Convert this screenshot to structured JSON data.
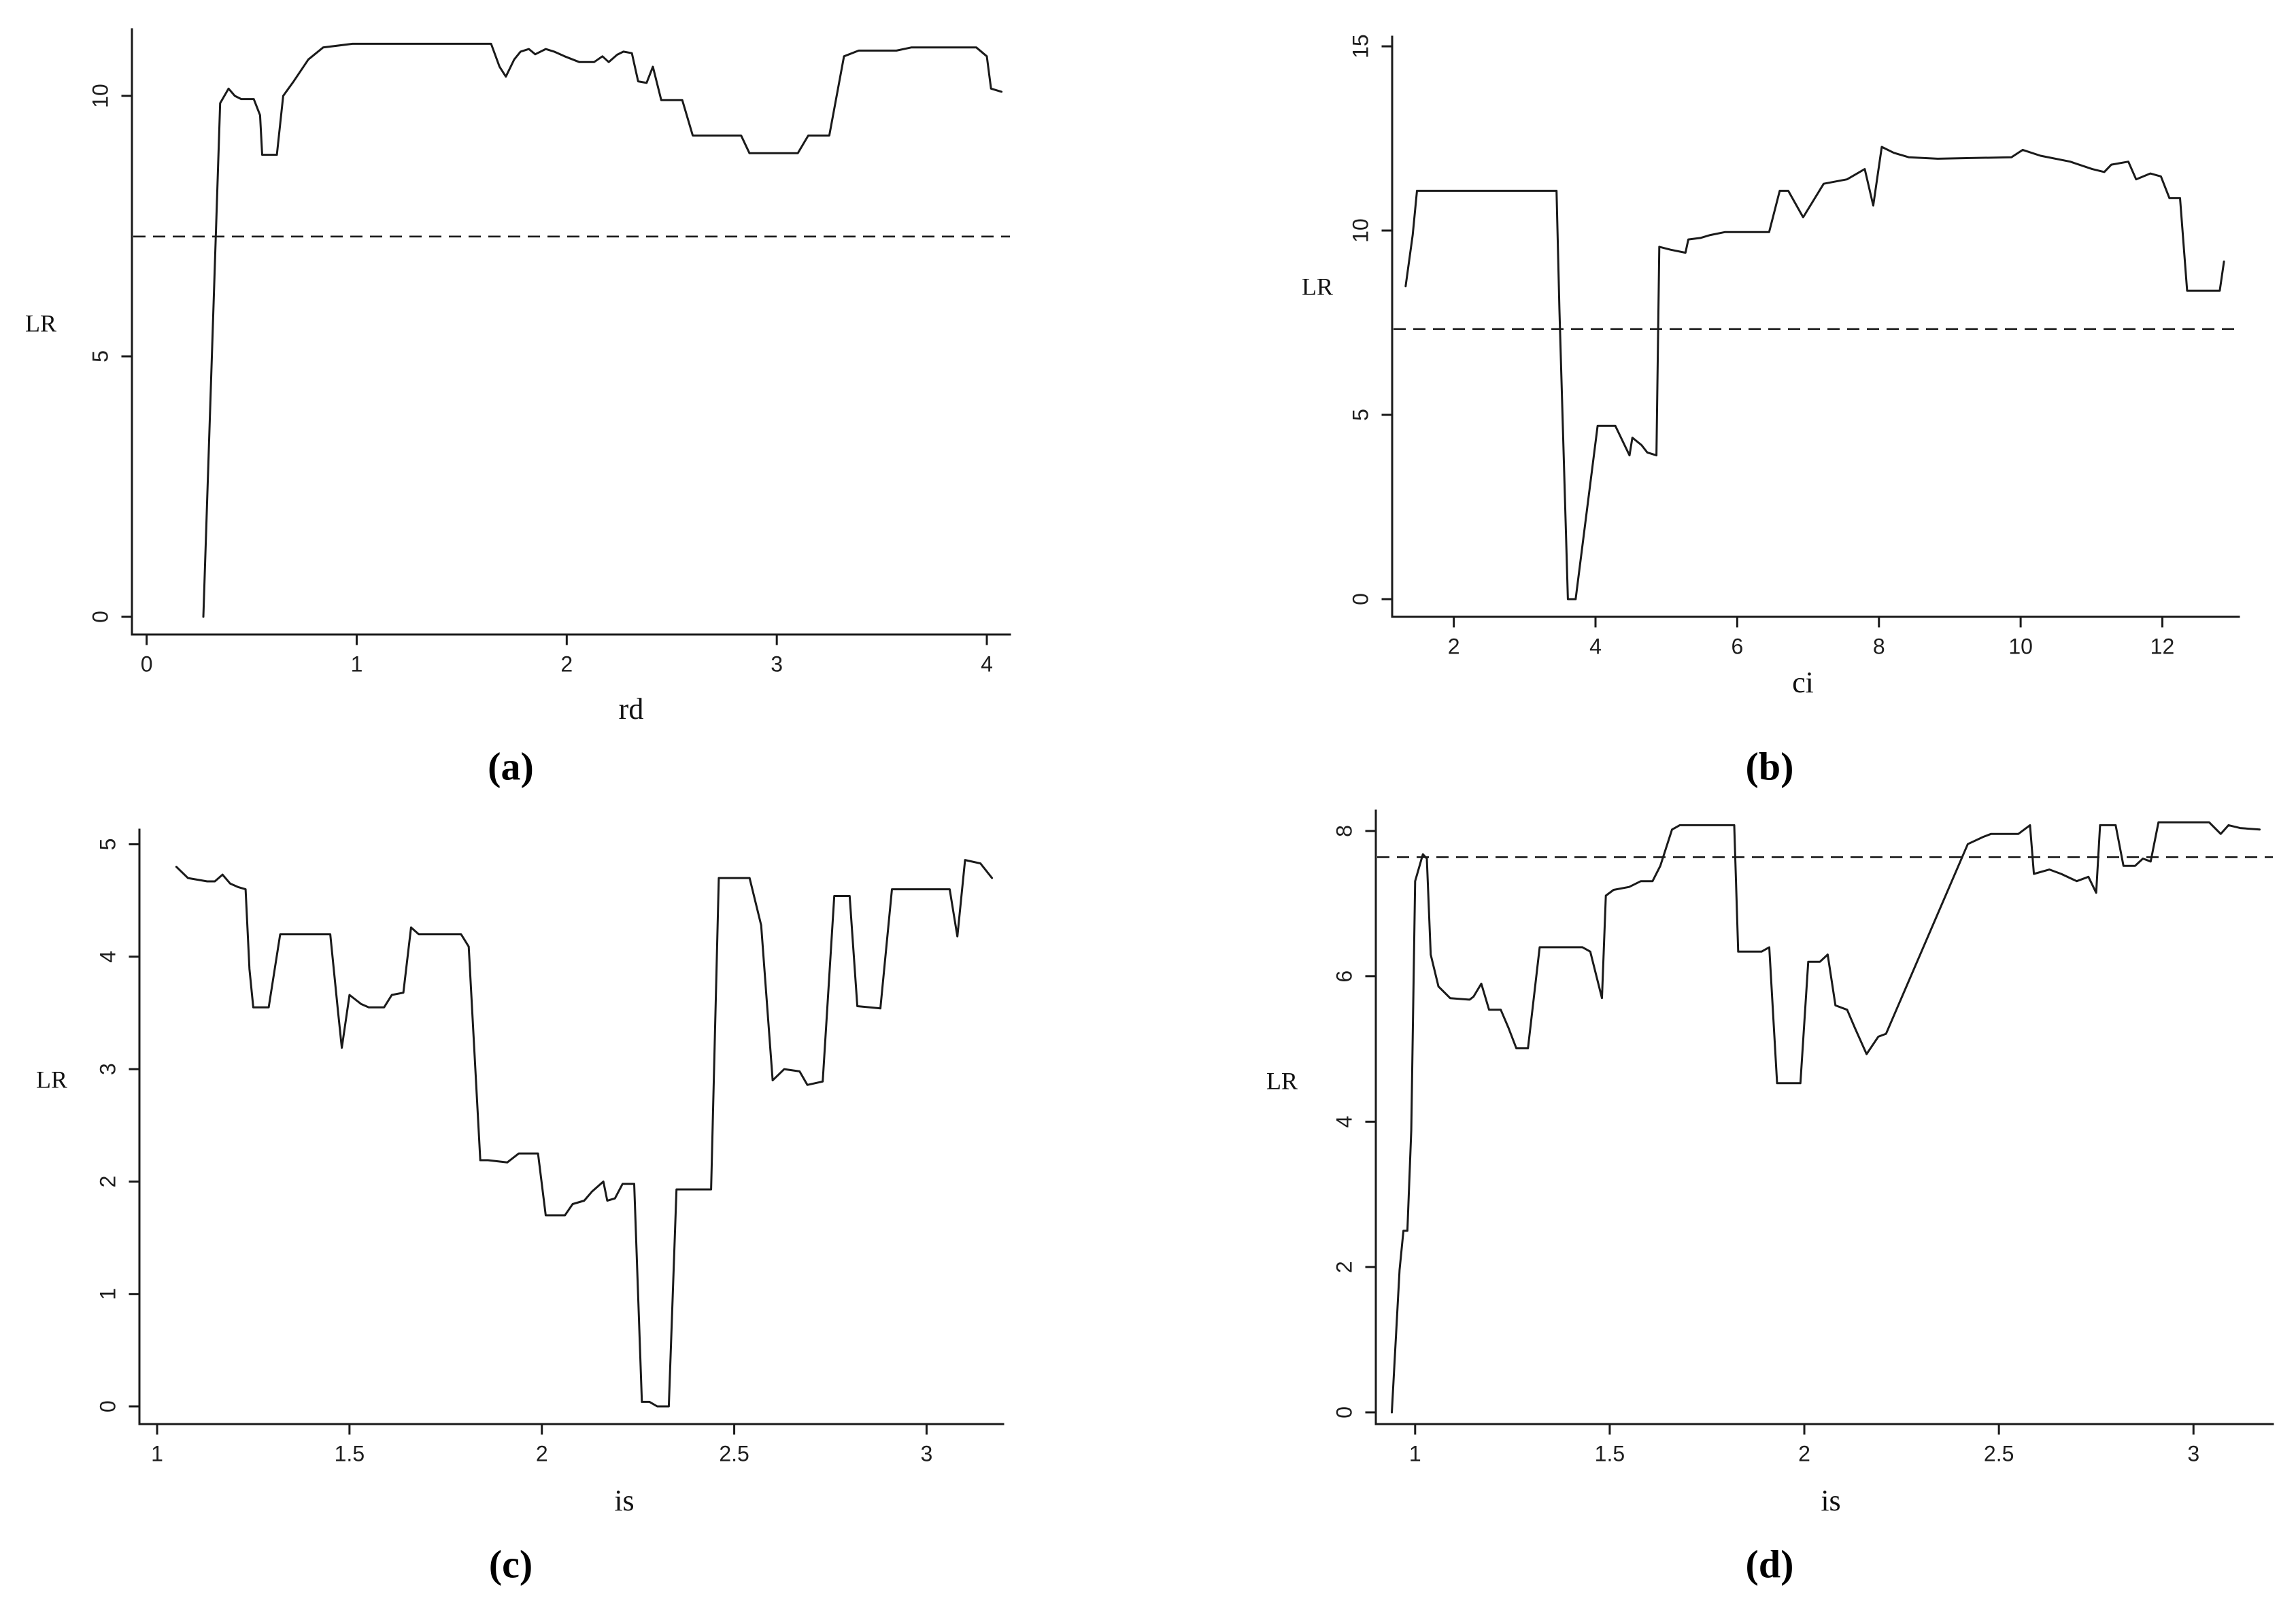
{
  "colors": {
    "line": "#1a1a1a",
    "background": "#ffffff"
  },
  "chart_data": [
    {
      "type": "line",
      "label": "(a)",
      "xlabel": "rd",
      "ylabel": "LR",
      "xlim": [
        -0.07,
        4.11
      ],
      "ylim": [
        -0.34,
        11.28
      ],
      "xticks": [
        0,
        1,
        2,
        3,
        4
      ],
      "yticks": [
        0,
        5,
        10
      ],
      "grid": false,
      "reference_line": {
        "y": 7.3,
        "style": "dashed"
      },
      "series": [
        {
          "x": [
            0.27,
            0.35,
            0.39,
            0.42,
            0.45,
            0.51,
            0.54,
            0.55,
            0.62,
            0.65,
            0.7,
            0.77,
            0.84,
            0.98,
            1.64,
            1.68,
            1.71,
            1.75,
            1.78,
            1.82,
            1.85,
            1.9,
            1.94,
            1.99,
            2.06,
            2.13,
            2.17,
            2.2,
            2.24,
            2.27,
            2.31,
            2.34,
            2.38,
            2.41,
            2.45,
            2.55,
            2.6,
            2.83,
            2.87,
            3.1,
            3.15,
            3.25,
            3.32,
            3.39,
            3.57,
            3.64,
            3.95,
            4.0,
            4.02,
            4.07
          ],
          "y": [
            0,
            9.86,
            10.14,
            10.0,
            9.94,
            9.94,
            9.63,
            8.87,
            8.87,
            10.0,
            10.28,
            10.7,
            10.93,
            11.0,
            11.0,
            10.56,
            10.37,
            10.7,
            10.85,
            10.9,
            10.8,
            10.9,
            10.85,
            10.76,
            10.65,
            10.65,
            10.76,
            10.65,
            10.79,
            10.85,
            10.82,
            10.28,
            10.25,
            10.56,
            9.92,
            9.92,
            9.24,
            9.24,
            8.9,
            8.9,
            9.24,
            9.24,
            10.76,
            10.87,
            10.87,
            10.93,
            10.93,
            10.76,
            10.14,
            10.08
          ]
        }
      ]
    },
    {
      "type": "line",
      "label": "(b)",
      "xlabel": "ci",
      "ylabel": "LR",
      "xlim": [
        1.13,
        13.08
      ],
      "ylim": [
        -0.48,
        15.26
      ],
      "xticks": [
        2,
        4,
        6,
        8,
        10,
        12
      ],
      "yticks": [
        0,
        5,
        10,
        15
      ],
      "grid": false,
      "reference_line": {
        "y": 7.33,
        "style": "dashed"
      },
      "series": [
        {
          "x": [
            1.32,
            1.42,
            1.48,
            3.45,
            3.49,
            3.61,
            3.72,
            4.03,
            4.28,
            4.48,
            4.52,
            4.65,
            4.73,
            4.86,
            4.9,
            5.06,
            5.27,
            5.31,
            5.48,
            5.62,
            5.83,
            6.45,
            6.6,
            6.72,
            6.93,
            7.22,
            7.55,
            7.8,
            7.92,
            8.04,
            8.21,
            8.42,
            8.83,
            9.87,
            10.03,
            10.28,
            10.7,
            11.01,
            11.18,
            11.28,
            11.52,
            11.63,
            11.83,
            11.98,
            12.1,
            12.25,
            12.35,
            12.81,
            12.87
          ],
          "y": [
            8.49,
            9.88,
            11.08,
            11.08,
            7.89,
            0,
            0,
            4.7,
            4.7,
            3.9,
            4.38,
            4.18,
            3.98,
            3.9,
            9.56,
            9.48,
            9.4,
            9.76,
            9.8,
            9.88,
            9.96,
            9.96,
            11.08,
            11.08,
            10.36,
            11.27,
            11.39,
            11.67,
            10.68,
            12.27,
            12.11,
            11.99,
            11.95,
            11.99,
            12.19,
            12.03,
            11.87,
            11.67,
            11.59,
            11.79,
            11.87,
            11.39,
            11.55,
            11.47,
            10.88,
            10.88,
            8.37,
            8.37,
            9.16
          ]
        }
      ]
    },
    {
      "type": "line",
      "label": "(c)",
      "xlabel": "is",
      "ylabel": "LR",
      "xlim": [
        0.954,
        3.199
      ],
      "ylim": [
        -0.157,
        5.13
      ],
      "xticks": [
        1,
        1.5,
        2,
        2.5,
        3
      ],
      "yticks": [
        0,
        1,
        2,
        3,
        4,
        5
      ],
      "grid": false,
      "series": [
        {
          "x": [
            1.05,
            1.08,
            1.13,
            1.15,
            1.17,
            1.19,
            1.21,
            1.23,
            1.24,
            1.25,
            1.29,
            1.32,
            1.45,
            1.47,
            1.48,
            1.5,
            1.53,
            1.55,
            1.59,
            1.61,
            1.64,
            1.66,
            1.68,
            1.79,
            1.81,
            1.84,
            1.86,
            1.91,
            1.94,
            1.99,
            2.01,
            2.06,
            2.08,
            2.11,
            2.13,
            2.16,
            2.17,
            2.19,
            2.21,
            2.24,
            2.26,
            2.28,
            2.3,
            2.33,
            2.35,
            2.39,
            2.44,
            2.46,
            2.54,
            2.57,
            2.6,
            2.63,
            2.67,
            2.69,
            2.73,
            2.76,
            2.8,
            2.82,
            2.88,
            2.91,
            3.06,
            3.08,
            3.1,
            3.14,
            3.17
          ],
          "y": [
            4.8,
            4.7,
            4.67,
            4.67,
            4.73,
            4.65,
            4.62,
            4.6,
            3.89,
            3.55,
            3.55,
            4.2,
            4.2,
            3.52,
            3.19,
            3.66,
            3.58,
            3.55,
            3.55,
            3.66,
            3.68,
            4.26,
            4.2,
            4.2,
            4.09,
            2.19,
            2.19,
            2.17,
            2.25,
            2.25,
            1.7,
            1.7,
            1.8,
            1.83,
            1.91,
            2.0,
            1.83,
            1.85,
            1.98,
            1.98,
            0.04,
            0.04,
            0,
            0,
            1.93,
            1.93,
            1.93,
            4.7,
            4.7,
            4.28,
            2.9,
            3.0,
            2.98,
            2.86,
            2.89,
            4.54,
            4.54,
            3.56,
            3.54,
            4.6,
            4.6,
            4.18,
            4.86,
            4.83,
            4.7
          ]
        }
      ]
    },
    {
      "type": "line",
      "label": "(d)",
      "xlabel": "is",
      "ylabel": "LR",
      "xlim": [
        0.899,
        3.204
      ],
      "ylim": [
        -0.16,
        8.28
      ],
      "xticks": [
        1,
        1.5,
        2,
        2.5,
        3
      ],
      "yticks": [
        0,
        2,
        4,
        6,
        8
      ],
      "grid": false,
      "reference_line": {
        "y": 7.64,
        "style": "dashed"
      },
      "series": [
        {
          "x": [
            0.94,
            0.96,
            0.97,
            0.98,
            0.99,
            1.0,
            1.02,
            1.03,
            1.04,
            1.06,
            1.09,
            1.14,
            1.15,
            1.17,
            1.19,
            1.22,
            1.24,
            1.26,
            1.29,
            1.32,
            1.43,
            1.45,
            1.48,
            1.49,
            1.51,
            1.55,
            1.58,
            1.61,
            1.63,
            1.66,
            1.68,
            1.82,
            1.83,
            1.89,
            1.91,
            1.93,
            1.99,
            2.01,
            2.04,
            2.06,
            2.08,
            2.11,
            2.13,
            2.16,
            2.19,
            2.21,
            2.42,
            2.46,
            2.48,
            2.55,
            2.58,
            2.59,
            2.63,
            2.66,
            2.7,
            2.73,
            2.75,
            2.76,
            2.8,
            2.82,
            2.85,
            2.87,
            2.89,
            2.91,
            3.04,
            3.07,
            3.09,
            3.12,
            3.17
          ],
          "y": [
            0,
            1.96,
            2.5,
            2.5,
            3.88,
            7.31,
            7.68,
            7.62,
            6.3,
            5.86,
            5.7,
            5.68,
            5.72,
            5.9,
            5.54,
            5.54,
            5.29,
            5.01,
            5.01,
            6.4,
            6.4,
            6.34,
            5.7,
            7.11,
            7.19,
            7.23,
            7.31,
            7.31,
            7.52,
            8.02,
            8.08,
            8.08,
            6.34,
            6.34,
            6.4,
            4.53,
            4.53,
            6.2,
            6.2,
            6.3,
            5.6,
            5.54,
            5.29,
            4.93,
            5.17,
            5.21,
            7.82,
            7.92,
            7.96,
            7.96,
            8.08,
            7.41,
            7.47,
            7.41,
            7.31,
            7.37,
            7.15,
            8.08,
            8.08,
            7.52,
            7.52,
            7.62,
            7.58,
            8.12,
            8.12,
            7.96,
            8.08,
            8.04,
            8.02
          ]
        }
      ]
    }
  ]
}
